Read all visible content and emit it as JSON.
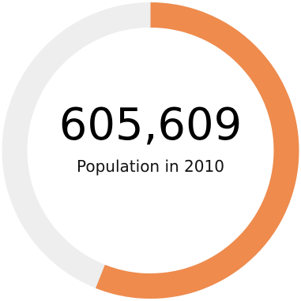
{
  "population_widget": {
    "value": "605,609",
    "caption": "Population in 2010",
    "progress_fraction": 0.56,
    "colors": {
      "progress": "#EE8B4D",
      "track": "#EEEEEE"
    }
  }
}
